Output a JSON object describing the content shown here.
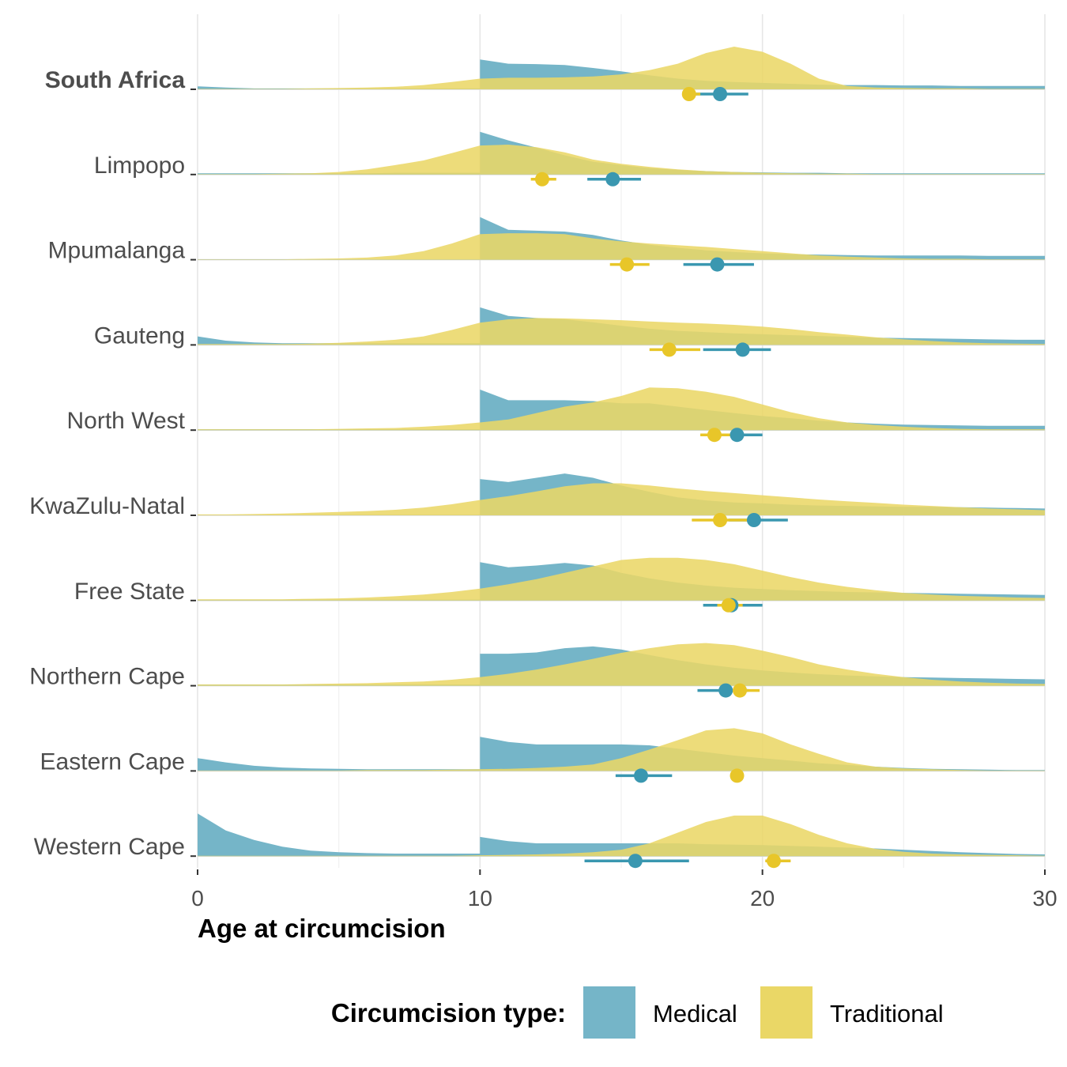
{
  "chart_data": {
    "type": "area",
    "xlabel": "Age at circumcision",
    "xlim": [
      0,
      30
    ],
    "x_ticks": [
      0,
      10,
      20,
      30
    ],
    "x_ticks_minor": [
      5,
      15,
      25
    ],
    "legend": {
      "title": "Circumcision type:",
      "position": "bottom",
      "items": [
        {
          "label": "Medical",
          "color": "#75b5c8"
        },
        {
          "label": "Traditional",
          "color": "#ead766"
        }
      ]
    },
    "colors": {
      "medical_fill": "#75b5c8",
      "traditional_fill": "#ead766",
      "medical_point": "#3a97b0",
      "traditional_point": "#e8c629"
    },
    "x_grid": [
      0,
      1,
      2,
      3,
      4,
      5,
      6,
      7,
      8,
      9,
      10,
      11,
      12,
      13,
      14,
      15,
      16,
      17,
      18,
      19,
      20,
      21,
      22,
      23,
      24,
      25,
      26,
      27,
      28,
      29,
      30
    ],
    "categories": [
      "South Africa",
      "Limpopo",
      "Mpumalanga",
      "Gauteng",
      "North West",
      "KwaZulu-Natal",
      "Free State",
      "Northern Cape",
      "Eastern Cape",
      "Western Cape"
    ],
    "bold_categories": [
      "South Africa"
    ],
    "series": [
      {
        "category": "South Africa",
        "medical": [
          0.07,
          0.04,
          0.02,
          0.02,
          0.02,
          0.02,
          0.02,
          0.02,
          0.02,
          0.02,
          0.7,
          0.6,
          0.59,
          0.57,
          0.5,
          0.42,
          0.33,
          0.25,
          0.2,
          0.17,
          0.15,
          0.13,
          0.11,
          0.1,
          0.1,
          0.09,
          0.09,
          0.08,
          0.08,
          0.08,
          0.08
        ],
        "traditional": [
          0.01,
          0.01,
          0.01,
          0.01,
          0.02,
          0.03,
          0.04,
          0.06,
          0.1,
          0.17,
          0.25,
          0.27,
          0.27,
          0.28,
          0.3,
          0.35,
          0.45,
          0.6,
          0.85,
          1.0,
          0.88,
          0.6,
          0.25,
          0.08,
          0.04,
          0.03,
          0.02,
          0.02,
          0.01,
          0.01,
          0.01
        ],
        "medical_mean": 18.5,
        "medical_ci": [
          17.4,
          19.5
        ],
        "traditional_mean": 17.4,
        "traditional_ci": [
          17.2,
          17.8
        ]
      },
      {
        "category": "Limpopo",
        "medical": [
          0.03,
          0.03,
          0.03,
          0.03,
          0.03,
          0.03,
          0.03,
          0.04,
          0.04,
          0.04,
          1.0,
          0.8,
          0.63,
          0.45,
          0.3,
          0.22,
          0.15,
          0.11,
          0.08,
          0.06,
          0.05,
          0.04,
          0.04,
          0.03,
          0.03,
          0.03,
          0.03,
          0.03,
          0.03,
          0.03,
          0.03
        ],
        "traditional": [
          0.01,
          0.01,
          0.01,
          0.02,
          0.03,
          0.06,
          0.12,
          0.22,
          0.33,
          0.5,
          0.68,
          0.7,
          0.64,
          0.52,
          0.35,
          0.25,
          0.18,
          0.12,
          0.08,
          0.06,
          0.04,
          0.03,
          0.02,
          0.02,
          0.01,
          0.01,
          0.01,
          0.01,
          0.01,
          0.01,
          0.01
        ],
        "medical_mean": 14.7,
        "medical_ci": [
          13.8,
          15.7
        ],
        "traditional_mean": 12.2,
        "traditional_ci": [
          11.8,
          12.7
        ]
      },
      {
        "category": "Mpumalanga",
        "medical": [
          0.01,
          0.01,
          0.01,
          0.01,
          0.01,
          0.01,
          0.01,
          0.01,
          0.01,
          0.01,
          1.0,
          0.7,
          0.68,
          0.66,
          0.58,
          0.45,
          0.35,
          0.28,
          0.22,
          0.18,
          0.15,
          0.13,
          0.12,
          0.11,
          0.1,
          0.1,
          0.1,
          0.1,
          0.09,
          0.09,
          0.09
        ],
        "traditional": [
          0.01,
          0.01,
          0.01,
          0.01,
          0.02,
          0.03,
          0.05,
          0.1,
          0.2,
          0.38,
          0.6,
          0.62,
          0.62,
          0.6,
          0.5,
          0.43,
          0.38,
          0.34,
          0.3,
          0.25,
          0.2,
          0.15,
          0.1,
          0.07,
          0.05,
          0.03,
          0.02,
          0.02,
          0.01,
          0.01,
          0.01
        ],
        "medical_mean": 18.4,
        "medical_ci": [
          17.2,
          19.7
        ],
        "traditional_mean": 15.2,
        "traditional_ci": [
          14.6,
          16.0
        ]
      },
      {
        "category": "Gauteng",
        "medical": [
          0.2,
          0.1,
          0.06,
          0.04,
          0.04,
          0.04,
          0.04,
          0.04,
          0.04,
          0.04,
          0.88,
          0.68,
          0.63,
          0.6,
          0.53,
          0.45,
          0.38,
          0.33,
          0.3,
          0.27,
          0.25,
          0.23,
          0.21,
          0.19,
          0.17,
          0.16,
          0.15,
          0.14,
          0.13,
          0.12,
          0.12
        ],
        "traditional": [
          0.02,
          0.02,
          0.02,
          0.02,
          0.03,
          0.05,
          0.08,
          0.12,
          0.2,
          0.35,
          0.52,
          0.6,
          0.63,
          0.62,
          0.6,
          0.58,
          0.55,
          0.52,
          0.5,
          0.47,
          0.43,
          0.37,
          0.3,
          0.24,
          0.18,
          0.13,
          0.09,
          0.06,
          0.04,
          0.03,
          0.02
        ],
        "medical_mean": 19.3,
        "medical_ci": [
          17.9,
          20.3
        ],
        "traditional_mean": 16.7,
        "traditional_ci": [
          16.0,
          17.8
        ]
      },
      {
        "category": "North West",
        "medical": [
          0.02,
          0.02,
          0.02,
          0.02,
          0.02,
          0.02,
          0.02,
          0.02,
          0.02,
          0.02,
          0.95,
          0.7,
          0.7,
          0.7,
          0.68,
          0.63,
          0.63,
          0.55,
          0.47,
          0.4,
          0.33,
          0.28,
          0.22,
          0.18,
          0.15,
          0.13,
          0.12,
          0.11,
          0.1,
          0.1,
          0.1
        ],
        "traditional": [
          0.02,
          0.02,
          0.02,
          0.02,
          0.02,
          0.03,
          0.04,
          0.05,
          0.08,
          0.12,
          0.18,
          0.25,
          0.4,
          0.55,
          0.65,
          0.8,
          1.0,
          0.98,
          0.9,
          0.78,
          0.6,
          0.42,
          0.28,
          0.18,
          0.12,
          0.08,
          0.05,
          0.03,
          0.02,
          0.02,
          0.02
        ],
        "medical_mean": 19.1,
        "medical_ci": [
          18.6,
          20.0
        ],
        "traditional_mean": 18.3,
        "traditional_ci": [
          17.8,
          18.9
        ]
      },
      {
        "category": "KwaZulu-Natal",
        "medical": [
          0.01,
          0.01,
          0.01,
          0.01,
          0.01,
          0.01,
          0.01,
          0.01,
          0.01,
          0.01,
          0.85,
          0.78,
          0.88,
          0.98,
          0.88,
          0.7,
          0.55,
          0.42,
          0.35,
          0.3,
          0.28,
          0.25,
          0.23,
          0.22,
          0.21,
          0.2,
          0.2,
          0.19,
          0.18,
          0.17,
          0.16
        ],
        "traditional": [
          0.02,
          0.02,
          0.03,
          0.04,
          0.06,
          0.08,
          0.1,
          0.13,
          0.18,
          0.26,
          0.36,
          0.45,
          0.56,
          0.68,
          0.75,
          0.75,
          0.7,
          0.63,
          0.57,
          0.52,
          0.47,
          0.42,
          0.37,
          0.33,
          0.29,
          0.25,
          0.22,
          0.19,
          0.16,
          0.14,
          0.12
        ],
        "medical_mean": 19.7,
        "medical_ci": [
          18.8,
          20.9
        ],
        "traditional_mean": 18.5,
        "traditional_ci": [
          17.5,
          19.5
        ]
      },
      {
        "category": "Free State",
        "medical": [
          0.02,
          0.02,
          0.02,
          0.02,
          0.02,
          0.02,
          0.02,
          0.02,
          0.02,
          0.02,
          0.9,
          0.78,
          0.82,
          0.88,
          0.82,
          0.65,
          0.52,
          0.42,
          0.35,
          0.3,
          0.27,
          0.24,
          0.22,
          0.2,
          0.19,
          0.18,
          0.17,
          0.16,
          0.15,
          0.14,
          0.13
        ],
        "traditional": [
          0.03,
          0.03,
          0.03,
          0.03,
          0.04,
          0.05,
          0.07,
          0.1,
          0.14,
          0.2,
          0.28,
          0.38,
          0.5,
          0.65,
          0.8,
          0.95,
          1.0,
          1.0,
          0.95,
          0.85,
          0.7,
          0.55,
          0.42,
          0.32,
          0.24,
          0.18,
          0.14,
          0.11,
          0.09,
          0.07,
          0.06
        ],
        "medical_mean": 18.9,
        "medical_ci": [
          17.9,
          20.0
        ],
        "traditional_mean": 18.8,
        "traditional_ci": [
          18.4,
          19.3
        ]
      },
      {
        "category": "Northern Cape",
        "medical": [
          0.03,
          0.03,
          0.03,
          0.03,
          0.03,
          0.03,
          0.03,
          0.03,
          0.03,
          0.03,
          0.75,
          0.75,
          0.78,
          0.88,
          0.92,
          0.85,
          0.72,
          0.6,
          0.5,
          0.42,
          0.36,
          0.31,
          0.27,
          0.24,
          0.22,
          0.2,
          0.19,
          0.18,
          0.17,
          0.16,
          0.15
        ],
        "traditional": [
          0.03,
          0.03,
          0.03,
          0.03,
          0.04,
          0.05,
          0.06,
          0.08,
          0.1,
          0.14,
          0.2,
          0.28,
          0.38,
          0.5,
          0.63,
          0.77,
          0.88,
          0.97,
          1.0,
          0.95,
          0.82,
          0.67,
          0.5,
          0.38,
          0.28,
          0.2,
          0.14,
          0.1,
          0.07,
          0.05,
          0.04
        ],
        "medical_mean": 18.7,
        "medical_ci": [
          17.7,
          19.5
        ],
        "traditional_mean": 19.2,
        "traditional_ci": [
          18.5,
          19.9
        ]
      },
      {
        "category": "Eastern Cape",
        "medical": [
          0.3,
          0.2,
          0.12,
          0.08,
          0.06,
          0.05,
          0.04,
          0.04,
          0.04,
          0.04,
          0.8,
          0.68,
          0.62,
          0.62,
          0.62,
          0.62,
          0.6,
          0.52,
          0.44,
          0.36,
          0.3,
          0.24,
          0.18,
          0.14,
          0.1,
          0.07,
          0.05,
          0.04,
          0.03,
          0.02,
          0.02
        ],
        "traditional": [
          0.01,
          0.01,
          0.01,
          0.01,
          0.01,
          0.01,
          0.02,
          0.02,
          0.02,
          0.03,
          0.04,
          0.05,
          0.07,
          0.1,
          0.15,
          0.3,
          0.5,
          0.72,
          0.95,
          1.0,
          0.88,
          0.62,
          0.4,
          0.2,
          0.1,
          0.06,
          0.04,
          0.02,
          0.01,
          0.01,
          0.01
        ],
        "medical_mean": 15.7,
        "medical_ci": [
          14.8,
          16.8
        ],
        "traditional_mean": 19.1,
        "traditional_ci": [
          19.1,
          19.1
        ]
      },
      {
        "category": "Western Cape",
        "medical": [
          1.0,
          0.6,
          0.38,
          0.22,
          0.13,
          0.09,
          0.07,
          0.06,
          0.06,
          0.06,
          0.45,
          0.35,
          0.3,
          0.3,
          0.3,
          0.3,
          0.3,
          0.3,
          0.28,
          0.27,
          0.26,
          0.24,
          0.22,
          0.2,
          0.18,
          0.15,
          0.12,
          0.09,
          0.07,
          0.05,
          0.04
        ],
        "traditional": [
          0.01,
          0.01,
          0.01,
          0.01,
          0.01,
          0.01,
          0.01,
          0.01,
          0.01,
          0.01,
          0.02,
          0.03,
          0.04,
          0.06,
          0.09,
          0.15,
          0.3,
          0.55,
          0.8,
          0.95,
          0.95,
          0.75,
          0.5,
          0.3,
          0.17,
          0.1,
          0.06,
          0.04,
          0.03,
          0.02,
          0.01
        ],
        "medical_mean": 15.5,
        "medical_ci": [
          13.7,
          17.4
        ],
        "traditional_mean": 20.4,
        "traditional_ci": [
          20.1,
          21.0
        ]
      }
    ]
  }
}
